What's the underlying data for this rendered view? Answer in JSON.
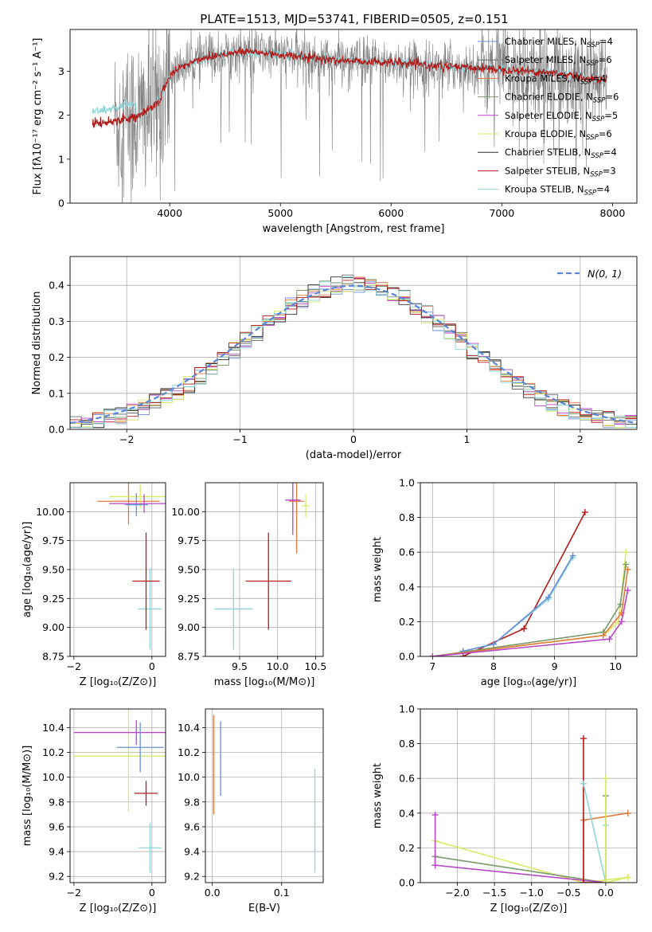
{
  "figure": {
    "title": "PLATE=1513, MJD=53741, FIBERID=0505, z=0.151"
  },
  "legend_entries": [
    {
      "name": "Chabrier MILES, N",
      "sub": "SSP",
      "tail": "=4",
      "color": "#6a8fd8"
    },
    {
      "name": "Salpeter MILES, N",
      "sub": "SSP",
      "tail": "=6",
      "color": "#6b6b6b"
    },
    {
      "name": "Kroupa MILES, N",
      "sub": "SSP",
      "tail": "=4",
      "color": "#e07b39"
    },
    {
      "name": "Chabrier ELODIE, N",
      "sub": "SSP",
      "tail": "=6",
      "color": "#7a9a6a"
    },
    {
      "name": "Salpeter ELODIE, N",
      "sub": "SSP",
      "tail": "=5",
      "color": "#b846c8"
    },
    {
      "name": "Kroupa ELODIE, N",
      "sub": "SSP",
      "tail": "=6",
      "color": "#d9ea63"
    },
    {
      "name": "Chabrier STELIB, N",
      "sub": "SSP",
      "tail": "=4",
      "color": "#2f2f2f"
    },
    {
      "name": "Salpeter STELIB, N",
      "sub": "SSP",
      "tail": "=3",
      "color": "#b31b1b"
    },
    {
      "name": "Kroupa STELIB, N",
      "sub": "SSP",
      "tail": "=4",
      "color": "#8fd6d9"
    }
  ],
  "chart_data": [
    {
      "id": "spectrum",
      "type": "line",
      "xlabel": "wavelength [Angstrom, rest frame]",
      "ylabel": "Flux [fλ10⁻¹⁷ erg cm⁻² s⁻¹ A⁻¹]",
      "xlim": [
        3100,
        8220
      ],
      "ylim": [
        0,
        3.95
      ],
      "xticks": [
        4000,
        5000,
        6000,
        7000,
        8000
      ],
      "yticks": [
        0,
        1,
        2,
        3
      ],
      "data_color": "#808080",
      "model_colors": [
        "#8fd6d9",
        "#b31b1b"
      ],
      "continuum": {
        "x": [
          3300,
          3450,
          3550,
          3650,
          3750,
          3900,
          4000,
          4100,
          4300,
          4500,
          4700,
          4900,
          5100,
          5300,
          5500,
          6000,
          6500,
          7000,
          7500,
          7900
        ],
        "y": [
          1.8,
          1.85,
          1.9,
          1.95,
          2.0,
          2.3,
          2.9,
          3.1,
          3.3,
          3.4,
          3.45,
          3.4,
          3.35,
          3.3,
          3.25,
          3.2,
          3.1,
          3.05,
          2.95,
          2.8
        ]
      }
    },
    {
      "id": "residuals",
      "type": "line",
      "xlabel": "(data-model)/error",
      "ylabel": "Normed distribution",
      "xlim": [
        -2.5,
        2.5
      ],
      "ylim": [
        0,
        0.48
      ],
      "xticks": [
        -2,
        -1,
        0,
        1,
        2
      ],
      "yticks": [
        0.0,
        0.1,
        0.2,
        0.3,
        0.4
      ],
      "grid": true,
      "legend": "top-right",
      "normal_label": "N(0, 1)",
      "normal_color": "#5b86d6"
    },
    {
      "id": "age-vs-Z",
      "type": "scatter",
      "xlabel": "Z [log₁₀(Z/Z⊙)]",
      "ylabel": "age  [log₁₀(age/yr)]",
      "xlim": [
        -2.1,
        0.35
      ],
      "ylim": [
        8.75,
        10.25
      ],
      "xticks": [
        -2,
        0
      ],
      "yticks": [
        8.75,
        9.0,
        9.25,
        9.5,
        9.75,
        10.0
      ],
      "grid": true,
      "points": [
        {
          "x": -0.05,
          "y": 9.16,
          "xerr": 0.3,
          "yerr": 0.35,
          "series": 8
        },
        {
          "x": -0.15,
          "y": 9.4,
          "xerr": 0.35,
          "yerr": 0.42,
          "series": 7
        },
        {
          "x": -0.6,
          "y": 10.09,
          "xerr": 0.8,
          "yerr": 0.2,
          "series": 2
        },
        {
          "x": -0.3,
          "y": 10.13,
          "xerr": 0.8,
          "yerr": 0.1,
          "series": 5
        },
        {
          "x": -0.2,
          "y": 10.07,
          "xerr": 0.9,
          "yerr": 0.08,
          "series": 4
        },
        {
          "x": -0.4,
          "y": 10.06,
          "xerr": 0.3,
          "yerr": 0.1,
          "series": 0
        }
      ]
    },
    {
      "id": "age-vs-mass",
      "type": "scatter",
      "xlabel": "mass [log₁₀(M/M⊙)]",
      "ylabel": "",
      "xlim": [
        9.05,
        10.6
      ],
      "ylim": [
        8.75,
        10.25
      ],
      "xticks": [
        9.5,
        10.0,
        10.5
      ],
      "yticks": [
        8.75,
        9.0,
        9.25,
        9.5,
        9.75,
        10.0
      ],
      "grid": true,
      "points": [
        {
          "x": 9.42,
          "y": 9.16,
          "xerr": 0.25,
          "yerr": 0.35,
          "series": 8
        },
        {
          "x": 9.88,
          "y": 9.4,
          "xerr": 0.3,
          "yerr": 0.42,
          "series": 7
        },
        {
          "x": 10.25,
          "y": 10.09,
          "xerr": 0.1,
          "yerr": 0.45,
          "series": 2
        },
        {
          "x": 10.37,
          "y": 10.05,
          "xerr": 0.05,
          "yerr": 0.1,
          "series": 5
        },
        {
          "x": 10.2,
          "y": 10.1,
          "xerr": 0.1,
          "yerr": 0.3,
          "series": 4
        }
      ]
    },
    {
      "id": "weight-vs-age",
      "type": "line",
      "xlabel": "age  [log₁₀(age/yr)]",
      "ylabel": "mass weight",
      "xlim": [
        6.8,
        10.35
      ],
      "ylim": [
        0,
        1.0
      ],
      "xticks": [
        7,
        8,
        9,
        10
      ],
      "yticks": [
        0.0,
        0.2,
        0.4,
        0.6,
        0.8,
        1.0
      ],
      "grid": true,
      "series": [
        {
          "x": [
            7.5,
            8.5,
            9.5
          ],
          "y": [
            0.0,
            0.16,
            0.83
          ],
          "idx": 7
        },
        {
          "x": [
            7.5,
            8.0,
            8.9,
            9.3
          ],
          "y": [
            0.03,
            0.07,
            0.33,
            0.57
          ],
          "idx": 8
        },
        {
          "x": [
            7.5,
            8.0,
            8.9,
            9.3
          ],
          "y": [
            0.03,
            0.07,
            0.34,
            0.58
          ],
          "idx": 0
        },
        {
          "x": [
            7.0,
            9.8,
            10.05,
            10.17
          ],
          "y": [
            0.0,
            0.12,
            0.2,
            0.6
          ],
          "idx": 5
        },
        {
          "x": [
            7.0,
            9.8,
            10.08,
            10.17
          ],
          "y": [
            0.0,
            0.14,
            0.3,
            0.53
          ],
          "idx": 3
        },
        {
          "x": [
            7.0,
            9.8,
            10.1,
            10.2
          ],
          "y": [
            0.0,
            0.12,
            0.25,
            0.5
          ],
          "idx": 2
        },
        {
          "x": [
            7.0,
            9.9,
            10.1,
            10.2
          ],
          "y": [
            0.0,
            0.1,
            0.2,
            0.38
          ],
          "idx": 4
        }
      ]
    },
    {
      "id": "mass-vs-Z",
      "type": "scatter",
      "xlabel": "Z [log₁₀(Z/Z⊙)]",
      "ylabel": "mass [log₁₀(M/M⊙)]",
      "xlim": [
        -2.1,
        0.35
      ],
      "ylim": [
        9.15,
        10.55
      ],
      "xticks": [
        -2,
        0
      ],
      "yticks": [
        9.2,
        9.4,
        9.6,
        9.8,
        10.0,
        10.2,
        10.4
      ],
      "grid": true,
      "points": [
        {
          "x": -0.05,
          "y": 9.43,
          "xerr": 0.3,
          "yerr": 0.2,
          "series": 8
        },
        {
          "x": -0.15,
          "y": 9.87,
          "xerr": 0.3,
          "yerr": 0.1,
          "series": 7
        },
        {
          "x": -0.6,
          "y": 10.17,
          "xerr": 1.4,
          "yerr": 0.45,
          "series": 5
        },
        {
          "x": -0.4,
          "y": 10.36,
          "xerr": 1.6,
          "yerr": 0.1,
          "series": 4
        },
        {
          "x": -0.3,
          "y": 10.24,
          "xerr": 0.6,
          "yerr": 0.2,
          "series": 0
        }
      ]
    },
    {
      "id": "mass-vs-EBV",
      "type": "scatter",
      "xlabel": "E(B-V)",
      "ylabel": "",
      "xlim": [
        -0.01,
        0.16
      ],
      "ylim": [
        9.15,
        10.55
      ],
      "xticks": [
        0.0,
        0.1
      ],
      "yticks": [
        9.2,
        9.4,
        9.6,
        9.8,
        10.0,
        10.2,
        10.4
      ],
      "grid": true,
      "points": [
        {
          "x": 0.002,
          "y": 10.1,
          "yerr": 0.4,
          "series": 2
        },
        {
          "x": 0.012,
          "y": 10.15,
          "yerr": 0.3,
          "series": 0
        },
        {
          "x": 0.148,
          "y": 9.65,
          "yerr": 0.42,
          "series": 8
        }
      ]
    },
    {
      "id": "weight-vs-Z",
      "type": "line",
      "xlabel": "Z [log₁₀(Z/Z⊙)]",
      "ylabel": "mass weight",
      "xlim": [
        -2.5,
        0.42
      ],
      "ylim": [
        0,
        1.0
      ],
      "xticks": [
        -2.0,
        -1.5,
        -1.0,
        -0.5,
        0.0
      ],
      "yticks": [
        0.0,
        0.2,
        0.4,
        0.6,
        0.8,
        1.0
      ],
      "grid": true,
      "series": [
        {
          "x": [
            -2.3,
            -2.3,
            -0.3,
            0.3
          ],
          "y": [
            0.24,
            0.24,
            0.0,
            0.03
          ],
          "idx": 5
        },
        {
          "x": [
            -2.3,
            -2.3,
            0.0,
            0.0
          ],
          "y": [
            0.15,
            0.15,
            0.0,
            0.5
          ],
          "idx": 3
        },
        {
          "x": [
            -2.3,
            -2.3,
            -2.3,
            0.0
          ],
          "y": [
            0.39,
            0.1,
            0.1,
            0.0
          ],
          "idx": 4
        },
        {
          "x": [
            -0.3,
            -0.3,
            0.3
          ],
          "y": [
            0.0,
            0.36,
            0.4
          ],
          "idx": 2
        },
        {
          "x": [
            -0.3,
            -0.3,
            0.0,
            0.0
          ],
          "y": [
            0.83,
            0.0,
            0.0,
            0.0
          ],
          "idx": 7
        },
        {
          "x": [
            -0.3,
            0.0,
            0.0
          ],
          "y": [
            0.57,
            0.0,
            0.33
          ],
          "idx": 8
        },
        {
          "x": [
            0.0,
            0.0,
            0.3
          ],
          "y": [
            0.6,
            0.0,
            0.03
          ],
          "idx": 5
        }
      ]
    }
  ]
}
